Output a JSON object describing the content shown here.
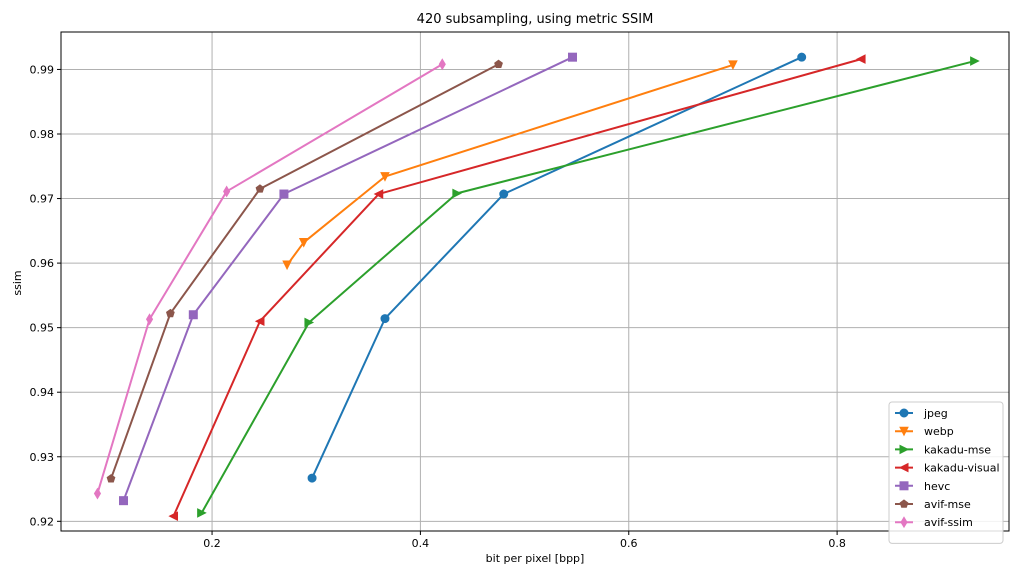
{
  "chart_data": {
    "type": "line",
    "title": "420 subsampling, using metric SSIM",
    "xlabel": "bit per pixel [bpp]",
    "ylabel": "ssim",
    "xlim": [
      0.055,
      0.965
    ],
    "ylim": [
      0.9185,
      0.9958
    ],
    "xticks": [
      0.2,
      0.4,
      0.6,
      0.8
    ],
    "xtick_labels": [
      "0.2",
      "0.4",
      "0.6",
      "0.8"
    ],
    "yticks": [
      0.92,
      0.93,
      0.94,
      0.95,
      0.96,
      0.97,
      0.98,
      0.99
    ],
    "ytick_labels": [
      "0.92",
      "0.93",
      "0.94",
      "0.95",
      "0.96",
      "0.97",
      "0.98",
      "0.99"
    ],
    "grid": true,
    "legend_position": "lower-right",
    "series": [
      {
        "name": "jpeg",
        "color": "#1f77b4",
        "marker": "circle",
        "x": [
          0.296,
          0.366,
          0.48,
          0.766
        ],
        "y": [
          0.9267,
          0.9514,
          0.9707,
          0.9919
        ]
      },
      {
        "name": "webp",
        "color": "#ff7f0e",
        "marker": "triangle-down",
        "x": [
          0.272,
          0.288,
          0.366,
          0.7
        ],
        "y": [
          0.9597,
          0.9632,
          0.9734,
          0.9907
        ]
      },
      {
        "name": "kakadu-mse",
        "color": "#2ca02c",
        "marker": "triangle-right",
        "x": [
          0.19,
          0.293,
          0.435,
          0.932
        ],
        "y": [
          0.9213,
          0.9508,
          0.9708,
          0.9913
        ]
      },
      {
        "name": "kakadu-visual",
        "color": "#d62728",
        "marker": "triangle-left",
        "x": [
          0.163,
          0.246,
          0.36,
          0.823
        ],
        "y": [
          0.9208,
          0.951,
          0.9707,
          0.9916
        ]
      },
      {
        "name": "hevc",
        "color": "#9467bd",
        "marker": "square",
        "x": [
          0.115,
          0.182,
          0.269,
          0.546
        ],
        "y": [
          0.9232,
          0.952,
          0.9707,
          0.9919
        ]
      },
      {
        "name": "avif-mse",
        "color": "#8c564b",
        "marker": "pentagon",
        "x": [
          0.103,
          0.16,
          0.246,
          0.475
        ],
        "y": [
          0.9266,
          0.9522,
          0.9715,
          0.9908
        ]
      },
      {
        "name": "avif-ssim",
        "color": "#e377c2",
        "marker": "diamond",
        "x": [
          0.09,
          0.14,
          0.214,
          0.421
        ],
        "y": [
          0.9243,
          0.9513,
          0.9711,
          0.9908
        ]
      }
    ]
  }
}
